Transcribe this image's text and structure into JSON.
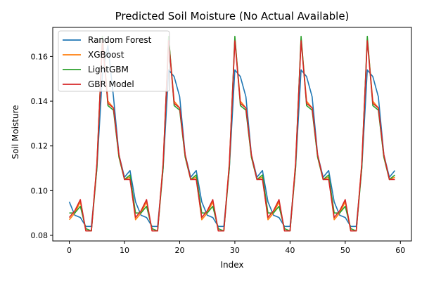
{
  "chart_data": {
    "type": "line",
    "title": "Predicted Soil Moisture (No Actual Available)",
    "xlabel": "Index",
    "ylabel": "Soil Moisture",
    "xlim": [
      -3,
      62
    ],
    "ylim": [
      0.0775,
      0.173
    ],
    "xticks": [
      0,
      10,
      20,
      30,
      40,
      50,
      60
    ],
    "yticks": [
      0.08,
      0.1,
      0.12,
      0.14,
      0.16
    ],
    "ytick_labels": [
      "0.08",
      "0.10",
      "0.12",
      "0.14",
      "0.16"
    ],
    "grid": false,
    "legend_position": "upper-left",
    "series": [
      {
        "name": "Random Forest",
        "color": "#1f77b4",
        "values": [
          0.095,
          0.089,
          0.088,
          0.084,
          0.084,
          0.11,
          0.152,
          0.165,
          0.142,
          0.116,
          0.106,
          0.109,
          0.095,
          0.089,
          0.088,
          0.084,
          0.084,
          0.11,
          0.154,
          0.151,
          0.142,
          0.116,
          0.106,
          0.109,
          0.095,
          0.089,
          0.088,
          0.084,
          0.084,
          0.11,
          0.154,
          0.151,
          0.142,
          0.116,
          0.106,
          0.109,
          0.095,
          0.089,
          0.088,
          0.084,
          0.084,
          0.11,
          0.154,
          0.151,
          0.142,
          0.116,
          0.106,
          0.109,
          0.095,
          0.089,
          0.088,
          0.084,
          0.084,
          0.11,
          0.154,
          0.151,
          0.142,
          0.116,
          0.106,
          0.109
        ]
      },
      {
        "name": "XGBoost",
        "color": "#ff7f0e",
        "values": [
          0.087,
          0.09,
          0.095,
          0.082,
          0.082,
          0.112,
          0.168,
          0.14,
          0.137,
          0.115,
          0.105,
          0.106,
          0.087,
          0.09,
          0.095,
          0.082,
          0.082,
          0.112,
          0.168,
          0.14,
          0.137,
          0.115,
          0.105,
          0.106,
          0.087,
          0.09,
          0.095,
          0.082,
          0.082,
          0.112,
          0.168,
          0.14,
          0.137,
          0.115,
          0.105,
          0.106,
          0.087,
          0.09,
          0.095,
          0.082,
          0.082,
          0.112,
          0.168,
          0.14,
          0.137,
          0.115,
          0.105,
          0.106,
          0.087,
          0.09,
          0.095,
          0.082,
          0.082,
          0.112,
          0.168,
          0.14,
          0.137,
          0.115,
          0.105,
          0.106
        ]
      },
      {
        "name": "LightGBM",
        "color": "#2ca02c",
        "values": [
          0.09,
          0.09,
          0.093,
          0.083,
          0.082,
          0.11,
          0.169,
          0.138,
          0.136,
          0.115,
          0.105,
          0.107,
          0.09,
          0.09,
          0.093,
          0.083,
          0.082,
          0.11,
          0.169,
          0.138,
          0.136,
          0.115,
          0.105,
          0.107,
          0.09,
          0.09,
          0.093,
          0.083,
          0.082,
          0.11,
          0.169,
          0.138,
          0.136,
          0.115,
          0.105,
          0.107,
          0.09,
          0.09,
          0.093,
          0.083,
          0.082,
          0.11,
          0.169,
          0.138,
          0.136,
          0.115,
          0.105,
          0.107,
          0.09,
          0.09,
          0.093,
          0.083,
          0.082,
          0.11,
          0.169,
          0.138,
          0.136,
          0.115,
          0.105,
          0.107
        ]
      },
      {
        "name": "GBR Model",
        "color": "#d62728",
        "values": [
          0.088,
          0.091,
          0.096,
          0.082,
          0.082,
          0.112,
          0.167,
          0.139,
          0.137,
          0.116,
          0.105,
          0.105,
          0.088,
          0.091,
          0.096,
          0.082,
          0.082,
          0.112,
          0.167,
          0.139,
          0.137,
          0.116,
          0.105,
          0.105,
          0.088,
          0.091,
          0.096,
          0.082,
          0.082,
          0.112,
          0.167,
          0.139,
          0.137,
          0.116,
          0.105,
          0.105,
          0.088,
          0.091,
          0.096,
          0.082,
          0.082,
          0.112,
          0.167,
          0.139,
          0.137,
          0.116,
          0.105,
          0.105,
          0.088,
          0.091,
          0.096,
          0.082,
          0.082,
          0.112,
          0.167,
          0.139,
          0.137,
          0.116,
          0.105,
          0.105
        ]
      }
    ]
  }
}
